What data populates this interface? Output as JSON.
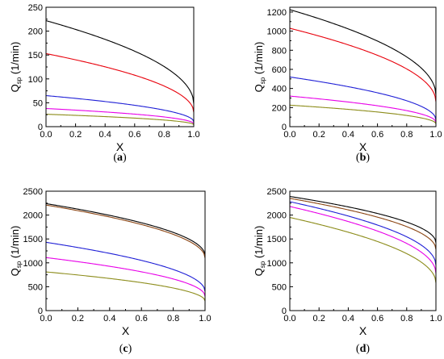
{
  "chart_data": [
    {
      "type": "line",
      "panel_label": {
        "open": "(",
        "letter": "a",
        "close": ")"
      },
      "xlabel": "X",
      "ylabel": {
        "main": "Q",
        "sub": "sp",
        "unit": " (1/min)"
      },
      "xlim": [
        0,
        1
      ],
      "ylim": [
        0,
        250
      ],
      "xticks": [
        0.0,
        0.2,
        0.4,
        0.6,
        0.8,
        1.0
      ],
      "xtick_labels": [
        "0.0",
        "0.2",
        "0.4",
        "0.6",
        "0.8",
        "1.0"
      ],
      "yticks": [
        0,
        50,
        100,
        150,
        200,
        250
      ],
      "ytick_labels": [
        "0",
        "50",
        "100",
        "150",
        "200",
        "250"
      ],
      "series": [
        {
          "color": "#000000",
          "y0": 222,
          "y1": 48
        },
        {
          "color": "#e8000b",
          "y0": 153,
          "y1": 30
        },
        {
          "color": "#1f1fd6",
          "y0": 65,
          "y1": 10
        },
        {
          "color": "#e800e8",
          "y0": 38,
          "y1": 6
        },
        {
          "color": "#8c8c1a",
          "y0": 26,
          "y1": 4
        }
      ]
    },
    {
      "type": "line",
      "panel_label": {
        "open": "(",
        "letter": "b",
        "close": ")"
      },
      "xlabel": "X",
      "ylabel": {
        "main": "Q",
        "sub": "sp",
        "unit": " (1/min)"
      },
      "xlim": [
        0,
        1
      ],
      "ylim": [
        0,
        1250
      ],
      "xticks": [
        0.0,
        0.2,
        0.4,
        0.6,
        0.8,
        1.0
      ],
      "xtick_labels": [
        "0.0",
        "0.2",
        "0.4",
        "0.6",
        "0.8",
        "1.0"
      ],
      "yticks": [
        0,
        200,
        400,
        600,
        800,
        1000,
        1200
      ],
      "ytick_labels": [
        "0",
        "200",
        "400",
        "600",
        "800",
        "1000",
        "1200"
      ],
      "series": [
        {
          "color": "#000000",
          "y0": 1225,
          "y1": 330
        },
        {
          "color": "#e8000b",
          "y0": 1030,
          "y1": 260
        },
        {
          "color": "#1f1fd6",
          "y0": 520,
          "y1": 70
        },
        {
          "color": "#e800e8",
          "y0": 320,
          "y1": 45
        },
        {
          "color": "#8c8c1a",
          "y0": 225,
          "y1": 30
        }
      ]
    },
    {
      "type": "line",
      "panel_label": {
        "open": "(",
        "letter": "c",
        "close": ")"
      },
      "xlabel": "X",
      "ylabel": {
        "main": "Q",
        "sub": "sp",
        "unit": " (1/min)"
      },
      "xlim": [
        0,
        1
      ],
      "ylim": [
        0,
        2500
      ],
      "xticks": [
        0.0,
        0.2,
        0.4,
        0.6,
        0.8,
        1.0
      ],
      "xtick_labels": [
        "0.0",
        "0.2",
        "0.4",
        "0.6",
        "0.8",
        "1.0"
      ],
      "yticks": [
        0,
        500,
        1000,
        1500,
        2000,
        2500
      ],
      "ytick_labels": [
        "0",
        "500",
        "1000",
        "1500",
        "2000",
        "2500"
      ],
      "series": [
        {
          "color": "#000000",
          "y0": 2240,
          "y1": 1150
        },
        {
          "color": "#8b4513",
          "y0": 2210,
          "y1": 1100
        },
        {
          "color": "#1f1fd6",
          "y0": 1430,
          "y1": 400
        },
        {
          "color": "#e800e8",
          "y0": 1110,
          "y1": 300
        },
        {
          "color": "#8c8c1a",
          "y0": 810,
          "y1": 200
        }
      ]
    },
    {
      "type": "line",
      "panel_label": {
        "open": "(",
        "letter": "d",
        "close": ")"
      },
      "xlabel": "X",
      "ylabel": {
        "main": "Q",
        "sub": "sp",
        "unit": " (1/min)"
      },
      "xlim": [
        0,
        1
      ],
      "ylim": [
        0,
        2500
      ],
      "xticks": [
        0.0,
        0.2,
        0.4,
        0.6,
        0.8,
        1.0
      ],
      "xtick_labels": [
        "0.0",
        "0.2",
        "0.4",
        "0.6",
        "0.8",
        "1.0"
      ],
      "yticks": [
        0,
        500,
        1000,
        1500,
        2000,
        2500
      ],
      "ytick_labels": [
        "0",
        "500",
        "1000",
        "1500",
        "2000",
        "2500"
      ],
      "series": [
        {
          "color": "#000000",
          "y0": 2390,
          "y1": 1420
        },
        {
          "color": "#8b4513",
          "y0": 2350,
          "y1": 1280
        },
        {
          "color": "#1f1fd6",
          "y0": 2280,
          "y1": 950
        },
        {
          "color": "#e800e8",
          "y0": 2180,
          "y1": 780
        },
        {
          "color": "#8c8c1a",
          "y0": 1950,
          "y1": 580
        }
      ]
    }
  ]
}
